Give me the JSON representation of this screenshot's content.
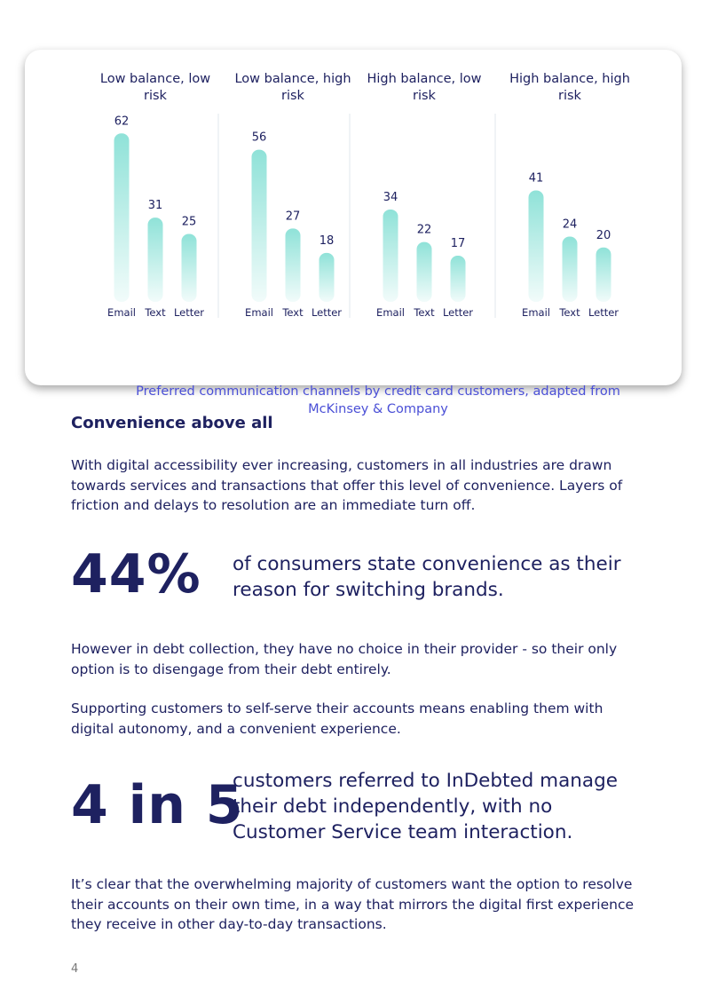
{
  "chart_data": [
    {
      "type": "bar",
      "title": "Low balance, low risk",
      "categories": [
        "Email",
        "Text",
        "Letter"
      ],
      "values": [
        62,
        31,
        25
      ],
      "color": "#8fe2d8"
    },
    {
      "type": "bar",
      "title": "Low balance, high risk",
      "categories": [
        "Email",
        "Text",
        "Letter"
      ],
      "values": [
        56,
        27,
        18
      ],
      "color": "#8fe2d8"
    },
    {
      "type": "bar",
      "title": "High balance, low risk",
      "categories": [
        "Email",
        "Text",
        "Letter"
      ],
      "values": [
        34,
        22,
        17
      ],
      "color": "#8fe2d8"
    },
    {
      "type": "bar",
      "title": "High balance, high risk",
      "categories": [
        "Email",
        "Text",
        "Letter"
      ],
      "values": [
        41,
        24,
        20
      ],
      "color": "#8fe2d8"
    }
  ],
  "caption": "Preferred communication channels by credit card customers, adapted from McKinsey & Company",
  "heading": "Convenience above all",
  "paragraphs": [
    "With digital accessibility ever increasing, customers in all industries are drawn towards services and transactions that offer this level of convenience. Layers of friction and delays to resolution are an immediate turn off.",
    "However in debt collection, they have no choice in their provider - so their only option is to disengage from their debt entirely.",
    "Supporting customers to self-serve their accounts means enabling them with digital autonomy, and a convenient experience.",
    "It’s clear that the overwhelming majority of customers want the option to resolve their accounts on their own time, in a way that mirrors the digital first experience they receive in other day-to-day transactions."
  ],
  "stats": [
    {
      "figure": "44%",
      "text": "of consumers state convenience as their reason for switching brands."
    },
    {
      "figure": "4 in 5",
      "text": "customers referred to InDebted manage their debt independently, with no Customer Service team interaction."
    }
  ],
  "page_number": "4"
}
